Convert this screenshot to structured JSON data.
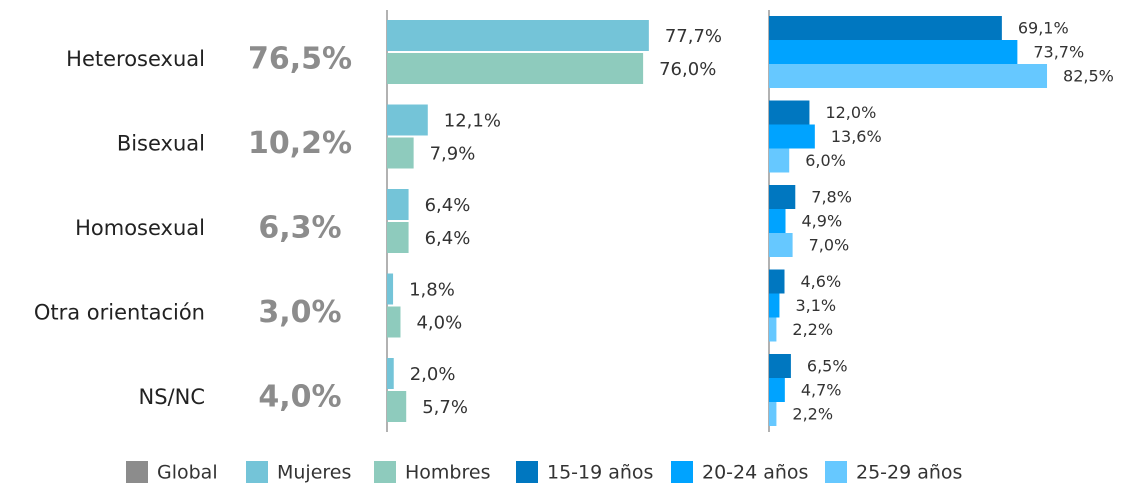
{
  "chart_data": {
    "type": "bar",
    "orientation": "horizontal",
    "categories": [
      "Heterosexual",
      "Bisexual",
      "Homosexual",
      "Otra orientación",
      "NS/NC"
    ],
    "xlim": [
      0,
      100
    ],
    "series": [
      {
        "name": "Global",
        "color": "#8c8c8c",
        "values": [
          76.5,
          10.2,
          6.3,
          3.0,
          4.0
        ],
        "value_labels": [
          "76,5%",
          "10,2%",
          "6,3%",
          "3,0%",
          "4,0%"
        ]
      },
      {
        "name": "Mujeres",
        "color": "#74c4d8",
        "values": [
          77.7,
          12.1,
          6.4,
          1.8,
          2.0
        ],
        "value_labels": [
          "77,7%",
          "12,1%",
          "6,4%",
          "1,8%",
          "2,0%"
        ]
      },
      {
        "name": "Hombres",
        "color": "#8ecbbd",
        "values": [
          76.0,
          7.9,
          6.4,
          4.0,
          5.7
        ],
        "value_labels": [
          "76,0%",
          "7,9%",
          "6,4%",
          "4,0%",
          "5,7%"
        ]
      },
      {
        "name": "15-19 años",
        "color": "#0077c0",
        "values": [
          69.1,
          12.0,
          7.8,
          4.6,
          6.5
        ],
        "value_labels": [
          "69,1%",
          "12,0%",
          "7,8%",
          "4,6%",
          "6,5%"
        ]
      },
      {
        "name": "20-24 años",
        "color": "#00a3ff",
        "values": [
          73.7,
          13.6,
          4.9,
          3.1,
          4.7
        ],
        "value_labels": [
          "73,7%",
          "13,6%",
          "4,9%",
          "3,1%",
          "4,7%"
        ]
      },
      {
        "name": "25-29 años",
        "color": "#66c8ff",
        "values": [
          82.5,
          6.0,
          7.0,
          2.2,
          2.2
        ],
        "value_labels": [
          "82,5%",
          "6,0%",
          "7,0%",
          "2,2%",
          "2,2%"
        ]
      }
    ]
  }
}
